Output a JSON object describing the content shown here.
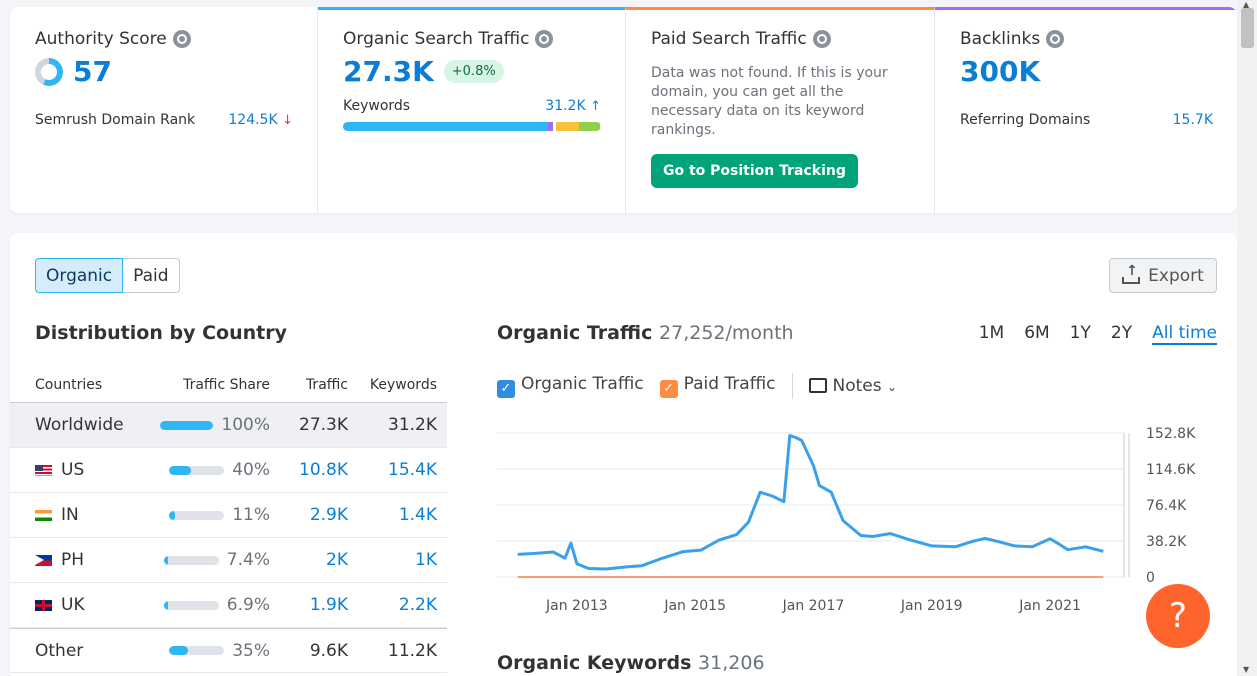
{
  "cards": {
    "authority": {
      "title": "Authority Score",
      "value": "57",
      "rank_label": "Semrush Domain Rank",
      "rank_value": "124.5K",
      "rank_trend": "↓"
    },
    "organic": {
      "title": "Organic Search Traffic",
      "value": "27.3K",
      "change": "+0.8%",
      "kw_label": "Keywords",
      "kw_value": "31.2K",
      "kw_trend": "↑"
    },
    "paid": {
      "title": "Paid Search Traffic",
      "desc": "Data was not found. If this is your domain, you can get all the necessary data on its keyword rankings.",
      "button": "Go to Position Tracking"
    },
    "backlinks": {
      "title": "Backlinks",
      "value": "300K",
      "ref_label": "Referring Domains",
      "ref_value": "15.7K"
    }
  },
  "toggle": {
    "organic": "Organic",
    "paid": "Paid"
  },
  "export": {
    "label": "Export"
  },
  "distribution": {
    "title": "Distribution by Country",
    "headers": {
      "countries": "Countries",
      "share": "Traffic Share",
      "traffic": "Traffic",
      "keywords": "Keywords"
    },
    "rows": [
      {
        "country": "Worldwide",
        "share": "100%",
        "traffic": "27.3K",
        "keywords": "31.2K"
      },
      {
        "country": "US",
        "share": "40%",
        "traffic": "10.8K",
        "keywords": "15.4K"
      },
      {
        "country": "IN",
        "share": "11%",
        "traffic": "2.9K",
        "keywords": "1.4K"
      },
      {
        "country": "PH",
        "share": "7.4%",
        "traffic": "2K",
        "keywords": "1K"
      },
      {
        "country": "UK",
        "share": "6.9%",
        "traffic": "1.9K",
        "keywords": "2.2K"
      },
      {
        "country": "Other",
        "share": "35%",
        "traffic": "9.6K",
        "keywords": "11.2K"
      }
    ]
  },
  "traffic_chart": {
    "title": "Organic Traffic",
    "subtitle": "27,252/month",
    "periods": [
      "1M",
      "6M",
      "1Y",
      "2Y",
      "All time"
    ],
    "legend": {
      "organic": "Organic Traffic",
      "paid": "Paid Traffic",
      "notes": "Notes"
    }
  },
  "keywords_section": {
    "title": "Organic Keywords",
    "value": "31,206"
  },
  "colors": {
    "accent": "#0a7ed7",
    "organic": "#2fb6f5",
    "paid": "#ff8c42",
    "green": "#00a37a",
    "help": "#ff642d"
  },
  "chart_data": {
    "type": "line",
    "x": [
      2012.0,
      2012.3,
      2012.6,
      2012.8,
      2012.9,
      2013.0,
      2013.2,
      2013.5,
      2013.8,
      2014.1,
      2014.4,
      2014.8,
      2015.1,
      2015.4,
      2015.7,
      2015.9,
      2016.1,
      2016.3,
      2016.5,
      2016.6,
      2016.7,
      2016.8,
      2017.0,
      2017.1,
      2017.3,
      2017.5,
      2017.8,
      2018.0,
      2018.3,
      2018.6,
      2019.0,
      2019.4,
      2019.7,
      2019.9,
      2020.1,
      2020.4,
      2020.7,
      2021.0,
      2021.15,
      2021.3,
      2021.6,
      2021.9
    ],
    "series": [
      {
        "name": "Organic Traffic",
        "values": [
          24000,
          25000,
          26500,
          20000,
          36000,
          14000,
          9000,
          8500,
          10500,
          12000,
          19000,
          27000,
          28500,
          39000,
          45000,
          58000,
          90000,
          86000,
          80000,
          150000,
          148000,
          145000,
          118000,
          97000,
          90000,
          60000,
          44000,
          43000,
          46000,
          40000,
          33000,
          32000,
          38000,
          41000,
          38000,
          33000,
          32000,
          40500,
          35000,
          29000,
          32000,
          27300
        ]
      },
      {
        "name": "Paid Traffic",
        "values": [
          0,
          0,
          0,
          0,
          0,
          0,
          0,
          0,
          0,
          0,
          0,
          0,
          0,
          0,
          0,
          0,
          0,
          0,
          0,
          0,
          0,
          0,
          0,
          0,
          0,
          0,
          0,
          0,
          0,
          0,
          0,
          0,
          0,
          0,
          0,
          0,
          0,
          0,
          0,
          0,
          0,
          0
        ]
      }
    ],
    "x_ticks": [
      "Jan 2013",
      "Jan 2015",
      "Jan 2017",
      "Jan 2019",
      "Jan 2021"
    ],
    "x_tick_values": [
      2013,
      2015,
      2017,
      2019,
      2021
    ],
    "y_ticks": [
      "0",
      "38.2K",
      "76.4K",
      "114.6K",
      "152.8K"
    ],
    "y_tick_values": [
      0,
      38200,
      76400,
      114600,
      152800
    ],
    "xlim": [
      2011.65,
      2022.25
    ],
    "ylim": [
      0,
      152800
    ],
    "grid": true
  }
}
